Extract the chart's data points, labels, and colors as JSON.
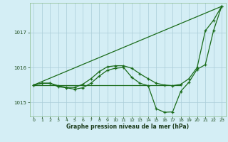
{
  "xlabel": "Graphe pression niveau de la mer (hPa)",
  "bg_color": "#d4eef5",
  "grid_color": "#aaccd8",
  "line_color": "#1a6b1a",
  "ylim": [
    1014.6,
    1017.85
  ],
  "xlim": [
    -0.5,
    23.5
  ],
  "yticks": [
    1015,
    1016,
    1017
  ],
  "xticks": [
    0,
    1,
    2,
    3,
    4,
    5,
    6,
    7,
    8,
    9,
    10,
    11,
    12,
    13,
    14,
    15,
    16,
    17,
    18,
    19,
    20,
    21,
    22,
    23
  ],
  "line_diagonal": {
    "x": [
      0,
      23
    ],
    "y": [
      1015.5,
      1017.75
    ]
  },
  "line_flat": {
    "x": [
      0,
      18
    ],
    "y": [
      1015.5,
      1015.5
    ]
  },
  "line_main1": {
    "x": [
      0,
      1,
      2,
      3,
      4,
      5,
      6,
      7,
      8,
      9,
      10,
      11,
      12,
      13,
      14,
      15,
      16,
      17,
      18,
      19,
      20,
      21,
      22,
      23
    ],
    "y": [
      1015.5,
      1015.55,
      1015.55,
      1015.48,
      1015.43,
      1015.43,
      1015.52,
      1015.68,
      1015.88,
      1016.02,
      1016.05,
      1016.05,
      1015.98,
      1015.82,
      1015.68,
      1015.55,
      1015.5,
      1015.48,
      1015.52,
      1015.68,
      1016.0,
      1017.05,
      1017.35,
      1017.75
    ]
  },
  "line_main2": {
    "x": [
      0,
      1,
      2,
      3,
      4,
      5,
      6,
      7,
      8,
      9,
      10,
      11,
      12,
      13,
      14,
      15,
      16,
      17,
      18,
      19,
      20,
      21,
      22,
      23
    ],
    "y": [
      1015.5,
      1015.55,
      1015.55,
      1015.45,
      1015.42,
      1015.38,
      1015.42,
      1015.55,
      1015.75,
      1015.92,
      1015.98,
      1016.0,
      1015.72,
      1015.55,
      1015.48,
      1014.82,
      1014.72,
      1014.73,
      1015.32,
      1015.58,
      1015.95,
      1016.08,
      1017.05,
      1017.75
    ]
  }
}
